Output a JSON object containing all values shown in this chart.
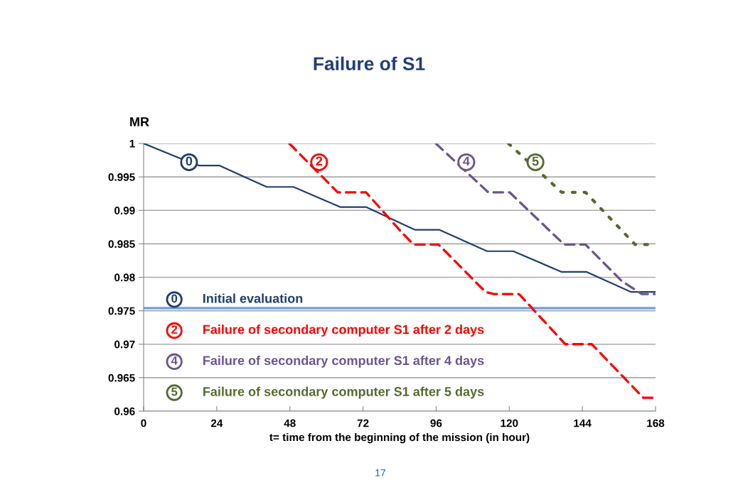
{
  "chart_data": {
    "type": "line",
    "title": "Failure of S1",
    "xlabel": "t= time from the beginning of the mission (in hour)",
    "ylabel": "MR",
    "xlim": [
      0,
      168
    ],
    "xticks": [
      0,
      24,
      48,
      72,
      96,
      120,
      144,
      168
    ],
    "ylim": [
      0.96,
      1
    ],
    "yticks": [
      0.96,
      0.965,
      0.97,
      0.975,
      0.98,
      0.985,
      0.99,
      0.995,
      1
    ],
    "grid": "y",
    "legend": "bottom left",
    "series": [
      {
        "name": "Initial evaluation",
        "color": "#1f3f6e",
        "line_style": "solid",
        "x": [
          0,
          12.4,
          18.2,
          24.8,
          40.4,
          49.2,
          64.5,
          73,
          84.7,
          89,
          97,
          112.7,
          121.3,
          137.2,
          145.4,
          160,
          168
        ],
        "values": [
          1,
          0.9977,
          0.9967,
          0.9967,
          0.9935,
          0.9935,
          0.9905,
          0.9905,
          0.988,
          0.9871,
          0.9871,
          0.9839,
          0.9839,
          0.9808,
          0.9808,
          0.9778,
          0.9778
        ]
      },
      {
        "name": "Failure of secondary computer S1 after 2 days",
        "color": "#ff0000",
        "line_style": "dashed",
        "x": [
          47.8,
          63.7,
          73,
          84.7,
          88.6,
          96.8,
          112.2,
          115,
          123.2,
          138.4,
          147.1,
          164,
          168
        ],
        "values": [
          1,
          0.9927,
          0.9927,
          0.9867,
          0.9849,
          0.9849,
          0.9778,
          0.9775,
          0.9775,
          0.97,
          0.97,
          0.962,
          0.962
        ]
      },
      {
        "name": "Failure of secondary computer S1 after 4 days",
        "color": "#6b5590",
        "line_style": "dashed",
        "x": [
          95.9,
          113.1,
          120.1,
          138,
          145,
          157,
          163.5,
          168
        ],
        "values": [
          1,
          0.9927,
          0.9927,
          0.9849,
          0.9849,
          0.9794,
          0.9775,
          0.9775
        ]
      },
      {
        "name": "Failure of secondary computer S1 after 5 days",
        "color": "#556b2f",
        "line_style": "dotted",
        "x": [
          119.7,
          137.2,
          145,
          161.3,
          168
        ],
        "values": [
          1,
          0.9927,
          0.9927,
          0.9849,
          0.9849
        ]
      }
    ],
    "ref_lines": [
      {
        "axis": "y",
        "value": 0.9754,
        "color": "#6d9eeb",
        "line_style": "solid"
      }
    ],
    "annotations": [
      {
        "text": "0",
        "x": 14.9,
        "y": 0.9972
      },
      {
        "text": "2",
        "x": 57.6,
        "y": 0.9972
      },
      {
        "text": "4",
        "x": 105.9,
        "y": 0.9972
      },
      {
        "text": "5",
        "x": 128.6,
        "y": 0.9972
      },
      "17"
    ]
  }
}
